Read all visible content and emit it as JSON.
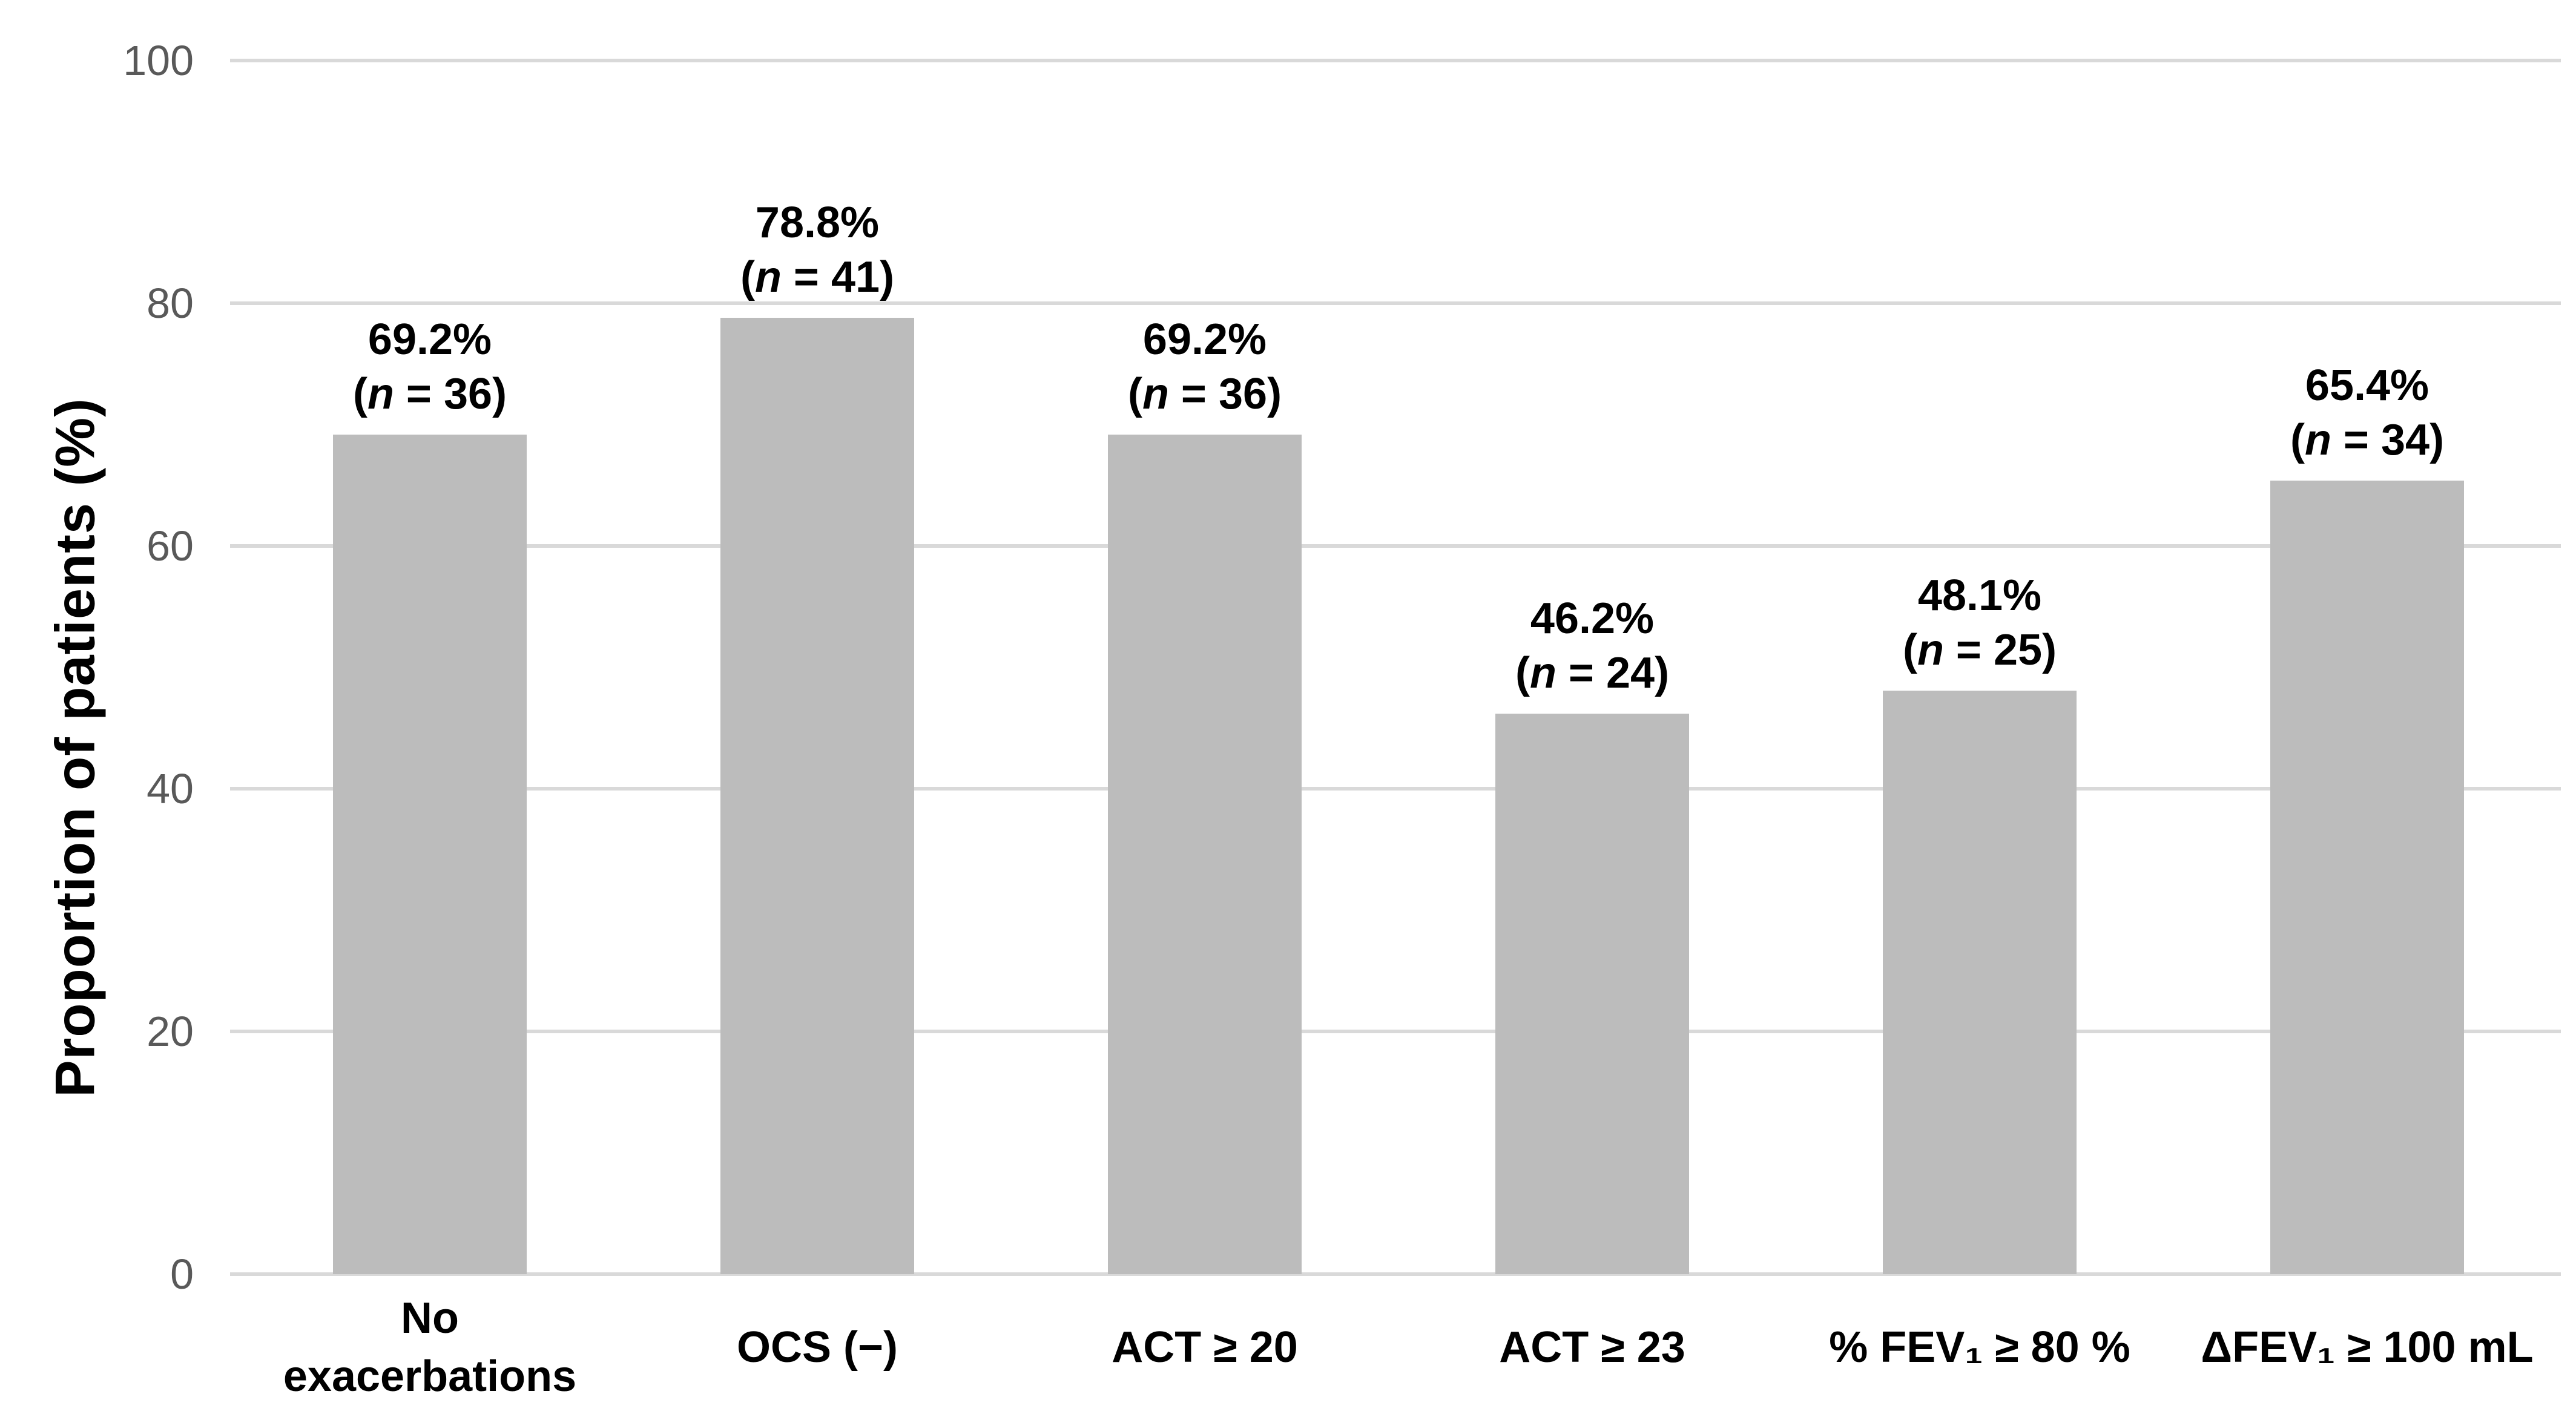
{
  "chart_data": {
    "type": "bar",
    "title": "",
    "categories": [
      "No exacerbations",
      "OCS (−)",
      "ACT ≥ 20",
      "ACT ≥ 23",
      "% FEV₁ ≥ 80 %",
      "ΔFEV₁ ≥ 100 mL"
    ],
    "values": [
      69.2,
      78.8,
      69.2,
      46.2,
      48.1,
      65.4
    ],
    "n_values": [
      36,
      41,
      36,
      24,
      25,
      34
    ],
    "data_labels": [
      "69.2% (n = 36)",
      "78.8% (n = 41)",
      "69.2% (n = 36)",
      "46.2% (n = 24)",
      "48.1% (n = 25)",
      "65.4% (n = 34)"
    ],
    "xlabel": "",
    "ylabel": "Proportion of patients (%)",
    "ylim": [
      0,
      100
    ],
    "yticks": [
      0,
      20,
      40,
      60,
      80,
      100
    ],
    "grid": "horizontal-gridlines-on",
    "legend": "none",
    "bar_color": "#bcbcbc",
    "gridline_color": "#d9d9d9",
    "tick_label_color": "#595959",
    "label_color": "#000000"
  },
  "y_axis": {
    "title": "Proportion of patients (%)",
    "ticks": [
      "100",
      "80",
      "60",
      "40",
      "20",
      "0"
    ]
  },
  "bars": [
    {
      "pct": "69.2%",
      "n_open": "(",
      "n_var": "n",
      "n_rest": " = 36)",
      "x_label": "No\nexacerbations"
    },
    {
      "pct": "78.8%",
      "n_open": "(",
      "n_var": "n",
      "n_rest": " = 41)",
      "x_label": "OCS (−)"
    },
    {
      "pct": "69.2%",
      "n_open": "(",
      "n_var": "n",
      "n_rest": " = 36)",
      "x_label": "ACT ≥ 20"
    },
    {
      "pct": "46.2%",
      "n_open": "(",
      "n_var": "n",
      "n_rest": " = 24)",
      "x_label": "ACT ≥ 23"
    },
    {
      "pct": "48.1%",
      "n_open": "(",
      "n_var": "n",
      "n_rest": " = 25)",
      "x_label": "% FEV₁ ≥ 80 %"
    },
    {
      "pct": "65.4%",
      "n_open": "(",
      "n_var": "n",
      "n_rest": " = 34)",
      "x_label": "ΔFEV₁ ≥ 100 mL"
    }
  ]
}
